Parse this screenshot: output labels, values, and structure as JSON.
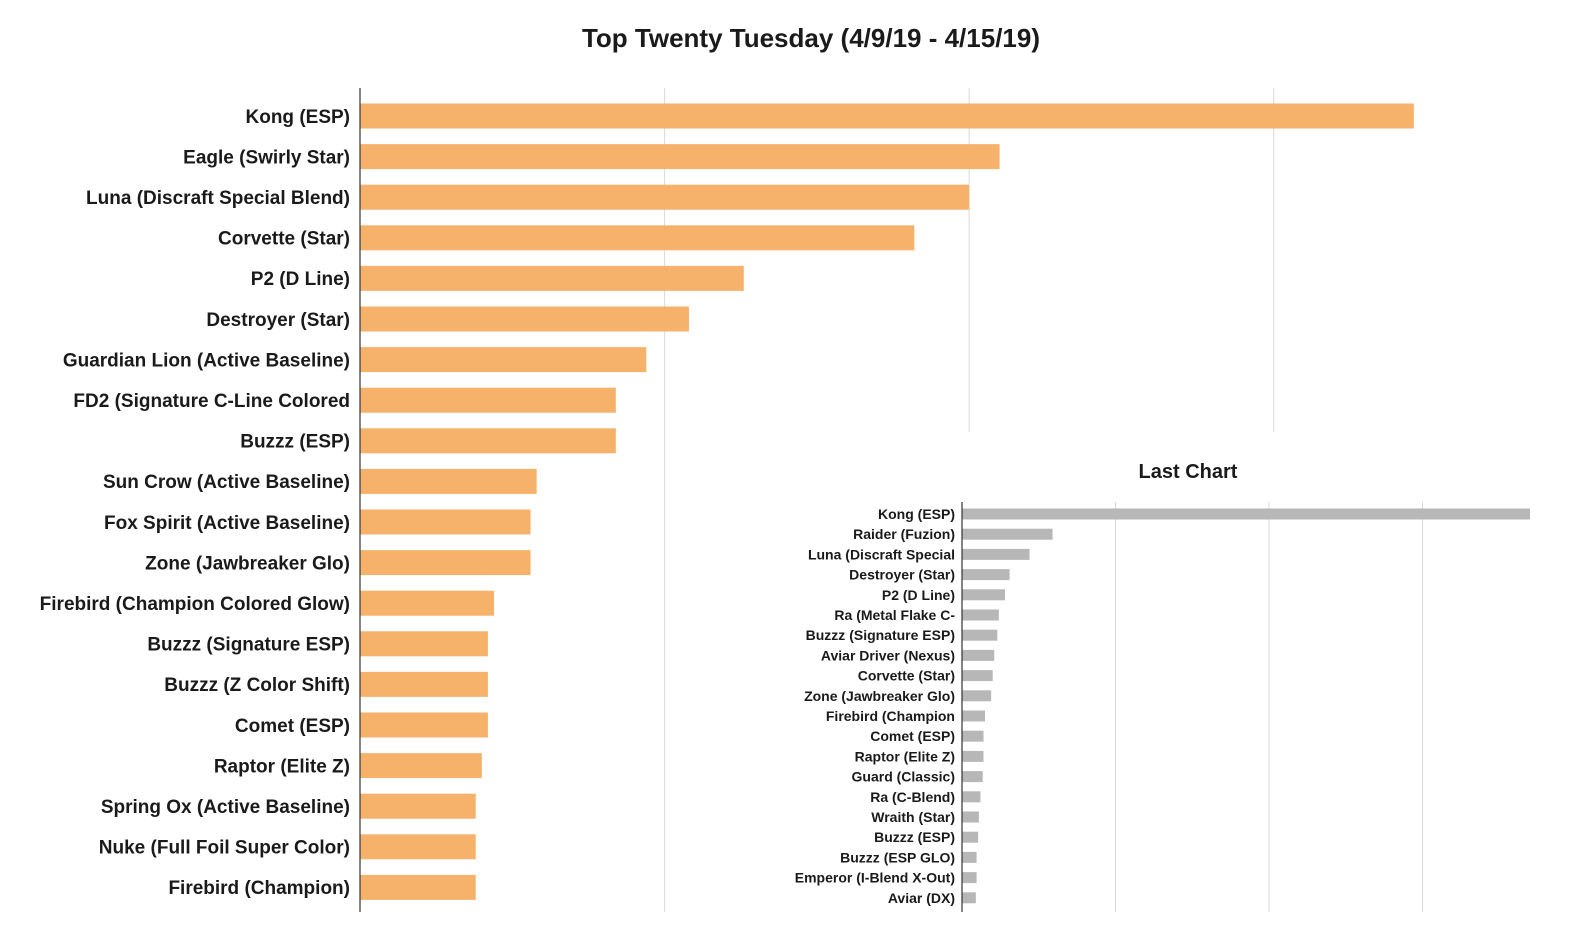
{
  "chart_data": [
    {
      "type": "bar",
      "orientation": "horizontal",
      "title": "Top Twenty Tuesday (4/9/19 - 4/15/19)",
      "xlabel": "",
      "ylabel": "",
      "bar_color": "#F6B26B",
      "grid": true,
      "legend": "none",
      "xlim": [
        0,
        35
      ],
      "gridlines": [
        0,
        10,
        20,
        30
      ],
      "categories": [
        "Kong (ESP)",
        "Eagle (Swirly Star)",
        "Luna (Discraft Special Blend)",
        "Corvette (Star)",
        "P2 (D Line)",
        "Destroyer (Star)",
        "Guardian Lion (Active Baseline)",
        "FD2 (Signature C-Line Colored",
        "Buzzz (ESP)",
        "Sun Crow (Active Baseline)",
        "Fox Spirit (Active Baseline)",
        "Zone (Jawbreaker Glo)",
        "Firebird (Champion Colored Glow)",
        "Buzzz (Signature ESP)",
        "Buzzz (Z Color Shift)",
        "Comet (ESP)",
        "Raptor (Elite Z)",
        "Spring Ox (Active Baseline)",
        "Nuke (Full Foil Super Color)",
        "Firebird (Champion)"
      ],
      "values": [
        34.6,
        21,
        20,
        18.2,
        12.6,
        10.8,
        9.4,
        8.4,
        8.4,
        5.8,
        5.6,
        5.6,
        4.4,
        4.2,
        4.2,
        4.2,
        4,
        3.8,
        3.8,
        3.8
      ]
    },
    {
      "type": "bar",
      "orientation": "horizontal",
      "title": "Last Chart",
      "xlabel": "",
      "ylabel": "",
      "bar_color": "#B7B7B7",
      "grid": true,
      "legend": "none",
      "xlim": [
        0,
        37
      ],
      "gridlines": [
        0,
        10,
        20,
        30
      ],
      "categories": [
        "Kong (ESP)",
        "Raider (Fuzion)",
        "Luna (Discraft Special",
        "Destroyer (Star)",
        "P2 (D Line)",
        "Ra (Metal Flake C-",
        "Buzzz (Signature ESP)",
        "Aviar Driver (Nexus)",
        "Corvette (Star)",
        "Zone (Jawbreaker Glo)",
        "Firebird (Champion",
        "Comet (ESP)",
        "Raptor (Elite Z)",
        "Guard (Classic)",
        "Ra (C-Blend)",
        "Wraith (Star)",
        "Buzzz (ESP)",
        "Buzzz (ESP GLO)",
        "Emperor (I-Blend X-Out)",
        "Aviar (DX)"
      ],
      "values": [
        37,
        5.9,
        4.4,
        3.1,
        2.8,
        2.4,
        2.3,
        2.1,
        2.0,
        1.9,
        1.5,
        1.4,
        1.4,
        1.35,
        1.2,
        1.1,
        1.05,
        0.95,
        0.95,
        0.9
      ]
    }
  ]
}
